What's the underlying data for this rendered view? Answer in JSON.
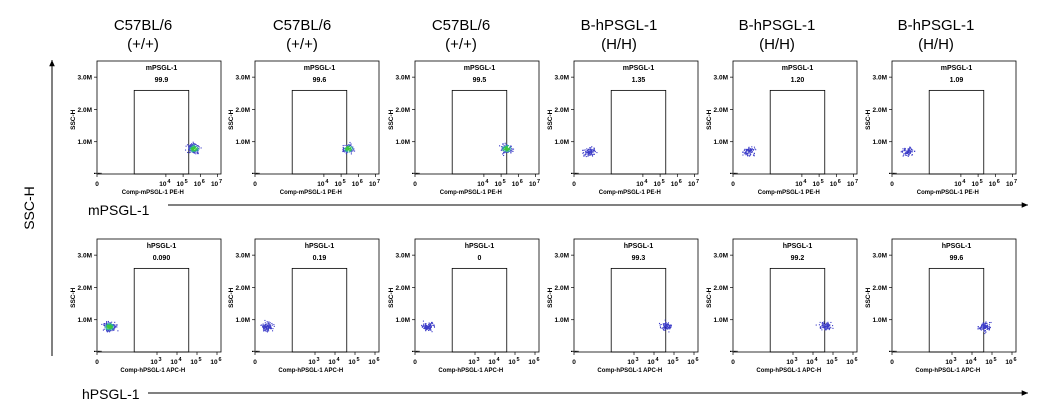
{
  "columns": [
    {
      "line1": "C57BL/6",
      "line2": "(+/+)"
    },
    {
      "line1": "C57BL/6",
      "line2": "(+/+)"
    },
    {
      "line1": "C57BL/6",
      "line2": "(+/+)"
    },
    {
      "line1": "B-hPSGL-1",
      "line2": "(H/H)"
    },
    {
      "line1": "B-hPSGL-1",
      "line2": "(H/H)"
    },
    {
      "line1": "B-hPSGL-1",
      "line2": "(H/H)"
    }
  ],
  "ylabel": "SSC-H",
  "row_labels": [
    "mPSGL-1",
    "hPSGL-1"
  ],
  "chart_data": [
    {
      "type": "scatter",
      "row": "mPSGL-1",
      "xlabel": "Comp-mPSGL-1 PE-H",
      "ylabel": "SSC-H",
      "x_ticks": [
        "0",
        "10",
        "4",
        "10",
        "5",
        "10",
        "6",
        "10",
        "7"
      ],
      "y_ticks": [
        "3.0M",
        "2.0M",
        "1.0M"
      ],
      "gate_name": "mPSGL-1",
      "panels": [
        {
          "gate_pct": "99.9",
          "cluster": {
            "x_log": 5.6,
            "y": 800000,
            "n": 160,
            "dense": true
          }
        },
        {
          "gate_pct": "99.6",
          "cluster": {
            "x_log": 5.4,
            "y": 800000,
            "n": 110,
            "dense": true
          }
        },
        {
          "gate_pct": "99.5",
          "cluster": {
            "x_log": 5.3,
            "y": 800000,
            "n": 130,
            "dense": true
          }
        },
        {
          "gate_pct": "1.35",
          "cluster": {
            "x_log": 0.9,
            "y": 700000,
            "n": 90,
            "dense": false
          }
        },
        {
          "gate_pct": "1.20",
          "cluster": {
            "x_log": 0.9,
            "y": 700000,
            "n": 90,
            "dense": false
          }
        },
        {
          "gate_pct": "1.09",
          "cluster": {
            "x_log": 0.9,
            "y": 700000,
            "n": 80,
            "dense": false
          }
        }
      ]
    },
    {
      "type": "scatter",
      "row": "hPSGL-1",
      "xlabel": "Comp-hPSGL-1 APC-H",
      "ylabel": "SSC-H",
      "x_ticks": [
        "0",
        "10",
        "3",
        "10",
        "4",
        "10",
        "5",
        "10",
        "6"
      ],
      "y_ticks": [
        "3.0M",
        "2.0M",
        "1.0M"
      ],
      "gate_name": "hPSGL-1",
      "panels": [
        {
          "gate_pct": "0.090",
          "cluster": {
            "x_log": 0.6,
            "y": 800000,
            "n": 170,
            "dense": true
          }
        },
        {
          "gate_pct": "0.19",
          "cluster": {
            "x_log": 0.6,
            "y": 800000,
            "n": 110,
            "dense": false
          }
        },
        {
          "gate_pct": "0",
          "cluster": {
            "x_log": 0.6,
            "y": 800000,
            "n": 110,
            "dense": false
          }
        },
        {
          "gate_pct": "99.3",
          "cluster": {
            "x_log": 4.6,
            "y": 800000,
            "n": 90,
            "dense": false
          }
        },
        {
          "gate_pct": "99.2",
          "cluster": {
            "x_log": 4.6,
            "y": 800000,
            "n": 90,
            "dense": false
          }
        },
        {
          "gate_pct": "99.6",
          "cluster": {
            "x_log": 4.6,
            "y": 800000,
            "n": 90,
            "dense": false
          }
        }
      ]
    }
  ],
  "colors": {
    "axis": "#000000",
    "dot_low": "#3c3cc8",
    "dot_mid": "#2ca5a0",
    "dot_high": "#3cc83c"
  }
}
